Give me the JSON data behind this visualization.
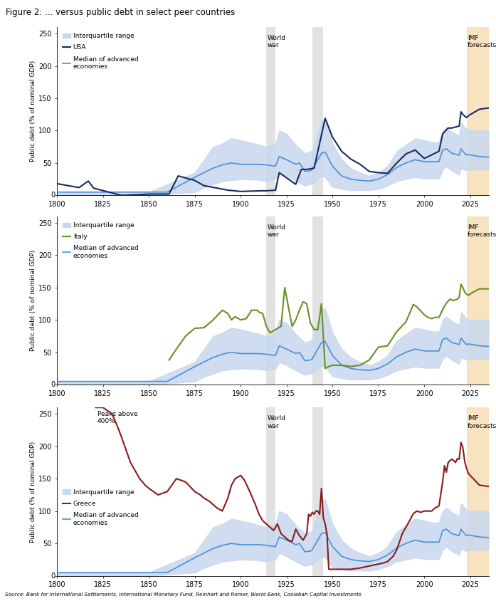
{
  "title": "Figure 2: ... versus public debt in select peer countries",
  "source": "Source: Bank for International Settlements, International Monetary Fund, Reinhart and Romer, World Bank, Coolabah Capital Investments",
  "ylabel": "Public debt (% of nominal GDP)",
  "xlim": [
    1800,
    2035
  ],
  "ylim": [
    0,
    260
  ],
  "ww1_band": [
    1914,
    1919
  ],
  "ww2_band": [
    1939,
    1945
  ],
  "imf_forecast_band": [
    2023,
    2035
  ],
  "xticks": [
    1800,
    1825,
    1850,
    1875,
    1900,
    1925,
    1950,
    1975,
    2000,
    2025
  ],
  "yticks": [
    0,
    50,
    100,
    150,
    200,
    250
  ],
  "colors": {
    "iqr_fill": "#c8d8ee",
    "usa": "#1a2a5e",
    "italy": "#6b8e23",
    "greece": "#8b1a1a",
    "median": "#4a90d9",
    "world_war": "#c0c0c0",
    "imf": "#f5d5a0",
    "title_bg": "#dce6f0"
  },
  "panel1_country": "USA",
  "panel2_country": "Italy",
  "panel3_country": "Greece",
  "panel3_annotation": "Peaks above\n400%",
  "world_war_label": "World\nwar",
  "imf_label": "IMF\nforecasts"
}
